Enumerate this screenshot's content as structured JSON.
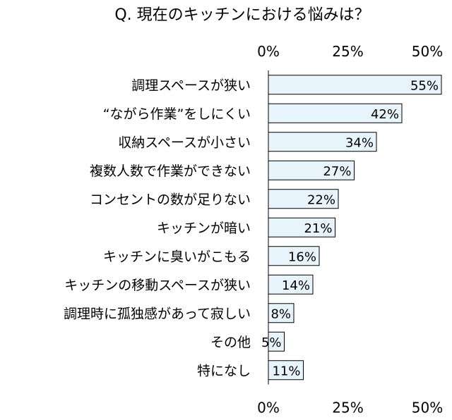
{
  "chart_data": {
    "type": "bar",
    "orientation": "horizontal",
    "title": "Q. 現在のキッチンにおける悩みは？",
    "categories": [
      "調理スペースが狭い",
      "“ながら作業”をしにくい",
      "収納スペースが小さい",
      "複数人数で作業ができない",
      "コンセントの数が足りない",
      "キッチンが暗い",
      "キッチンに臭いがこもる",
      "キッチンの移動スペースが狭い",
      "調理時に孤独感があって寂しい",
      "その他",
      "特になし"
    ],
    "values": [
      55,
      42,
      34,
      27,
      22,
      21,
      16,
      14,
      8,
      5,
      11
    ],
    "data_labels": [
      "55%",
      "42%",
      "34%",
      "27%",
      "22%",
      "21%",
      "16%",
      "14%",
      "8%",
      "5%",
      "11%"
    ],
    "xlim": [
      0,
      50
    ],
    "ticks": [
      0,
      25,
      50
    ],
    "tick_labels": [
      "0%",
      "25%",
      "50%"
    ],
    "tick_labels_top_and_bottom": true,
    "grid": false,
    "bar_fill": "#e8f4fb",
    "bar_stroke": "#000000"
  }
}
